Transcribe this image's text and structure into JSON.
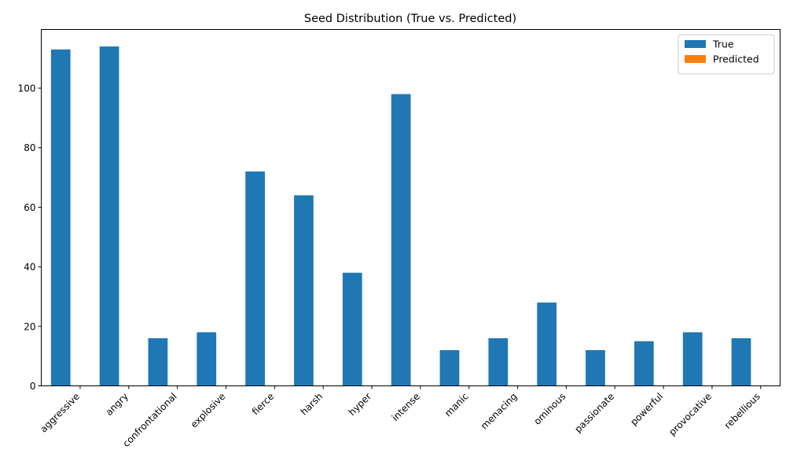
{
  "chart_data": {
    "type": "bar",
    "title": "Seed Distribution (True vs. Predicted)",
    "xlabel": "",
    "ylabel": "",
    "categories": [
      "aggressive",
      "angry",
      "confrontational",
      "explosive",
      "fierce",
      "harsh",
      "hyper",
      "intense",
      "manic",
      "menacing",
      "ominous",
      "passionate",
      "powerful",
      "provocative",
      "rebellious"
    ],
    "series": [
      {
        "name": "True",
        "color": "#1f77b4",
        "values": [
          113,
          114,
          16,
          18,
          72,
          64,
          38,
          98,
          12,
          16,
          28,
          12,
          15,
          18,
          16
        ]
      },
      {
        "name": "Predicted",
        "color": "#ff7f0e",
        "values": [
          0,
          0,
          0,
          0,
          0,
          0,
          0,
          0,
          0,
          0,
          0,
          0,
          0,
          0,
          0
        ]
      }
    ],
    "ylim": [
      0,
      119.7
    ],
    "yticks": [
      0,
      20,
      40,
      60,
      80,
      100
    ],
    "grid": false,
    "legend_position": "top-right"
  }
}
